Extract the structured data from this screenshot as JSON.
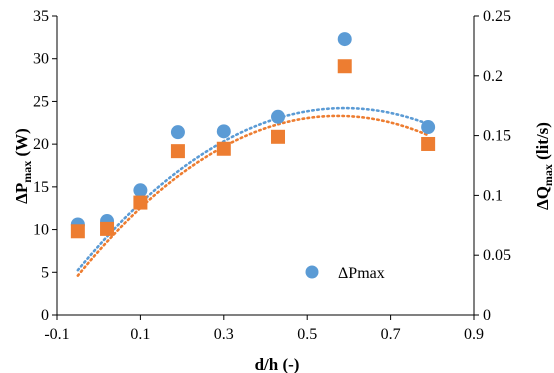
{
  "chart_data": {
    "type": "scatter",
    "title": "",
    "xlabel": "d/h (-)",
    "ylabel_left": {
      "main": "ΔP",
      "sub": "max",
      "unit": " (W)"
    },
    "ylabel_right": {
      "main": "ΔQ",
      "sub": "max",
      "unit": " (lit/s)"
    },
    "xlim": [
      -0.1,
      0.9
    ],
    "ylim_left": [
      0,
      35
    ],
    "ylim_right": [
      0,
      0.25
    ],
    "x_ticks": [
      "-0.1",
      "0.1",
      "0.3",
      "0.5",
      "0.7",
      "0.9"
    ],
    "y_ticks_left": [
      "0",
      "5",
      "10",
      "15",
      "20",
      "25",
      "30",
      "35"
    ],
    "y_ticks_right": [
      "0",
      "0.05",
      "0.1",
      "0.15",
      "0.2",
      "0.25"
    ],
    "grid": false,
    "legend": {
      "position": "inside-bottom-right",
      "entries": [
        "ΔPmax"
      ]
    },
    "series": [
      {
        "name": "ΔPmax",
        "axis": "left",
        "marker": "circle",
        "color": "#5B9BD5",
        "x": [
          -0.05,
          0.02,
          0.1,
          0.19,
          0.3,
          0.43,
          0.59,
          0.79
        ],
        "y": [
          10.6,
          11.0,
          14.6,
          21.4,
          21.5,
          23.2,
          32.3,
          22.0
        ],
        "trendline": {
          "color": "#5B9BD5",
          "coefficients": [
            8.1,
            54.7,
            -46.4
          ],
          "x_range": [
            -0.05,
            0.79
          ]
        }
      },
      {
        "name": "ΔQmax",
        "axis": "right",
        "marker": "square",
        "color": "#ED7D31",
        "x": [
          -0.05,
          0.02,
          0.1,
          0.19,
          0.3,
          0.43,
          0.59,
          0.79
        ],
        "y": [
          0.07,
          0.072,
          0.094,
          0.137,
          0.139,
          0.149,
          0.208,
          0.143
        ],
        "trendline": {
          "color": "#ED7D31",
          "coefficients": [
            0.0535,
            0.3943,
            -0.344
          ],
          "x_range": [
            -0.05,
            0.79
          ]
        }
      }
    ]
  }
}
